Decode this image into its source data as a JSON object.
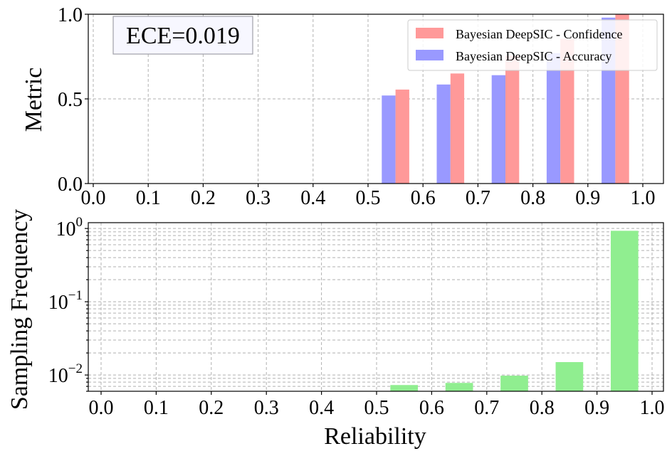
{
  "chart_data": [
    {
      "type": "bar",
      "panel": "top",
      "ylabel": "Metric",
      "xlim": [
        0.0,
        1.0
      ],
      "ylim": [
        0.0,
        1.0
      ],
      "xticks": [
        "0.0",
        "0.1",
        "0.2",
        "0.3",
        "0.4",
        "0.5",
        "0.6",
        "0.7",
        "0.8",
        "0.9",
        "1.0"
      ],
      "yticks": [
        "0.0",
        "0.5",
        "1.0"
      ],
      "grid": true,
      "legend_position": "top-right",
      "annotation": "ECE=0.019",
      "bins_center": [
        0.55,
        0.65,
        0.75,
        0.85,
        0.95
      ],
      "series": [
        {
          "name": "Bayesian DeepSIC - Confidence",
          "color": "#ff9999",
          "values": [
            0.555,
            0.65,
            0.755,
            0.855,
            1.0
          ]
        },
        {
          "name": "Bayesian DeepSIC - Accuracy",
          "color": "#9999ff",
          "values": [
            0.52,
            0.585,
            0.64,
            0.77,
            0.98
          ]
        }
      ]
    },
    {
      "type": "bar",
      "panel": "bottom",
      "ylabel": "Sampling Frequency",
      "xlabel": "Reliability",
      "yscale": "log",
      "ylim": [
        0.006,
        1.2
      ],
      "xlim": [
        0.0,
        1.0
      ],
      "xticks": [
        "0.0",
        "0.1",
        "0.2",
        "0.3",
        "0.4",
        "0.5",
        "0.6",
        "0.7",
        "0.8",
        "0.9",
        "1.0"
      ],
      "yticks": [
        {
          "mantissa": "10",
          "exponent": "0",
          "value": 1
        },
        {
          "mantissa": "10",
          "exponent": "−1",
          "value": 0.1
        },
        {
          "mantissa": "10",
          "exponent": "−2",
          "value": 0.01
        }
      ],
      "grid": true,
      "color": "#90ee90",
      "bins_center": [
        0.55,
        0.65,
        0.75,
        0.85,
        0.95
      ],
      "values": [
        0.0073,
        0.0078,
        0.0098,
        0.015,
        0.93
      ]
    }
  ]
}
